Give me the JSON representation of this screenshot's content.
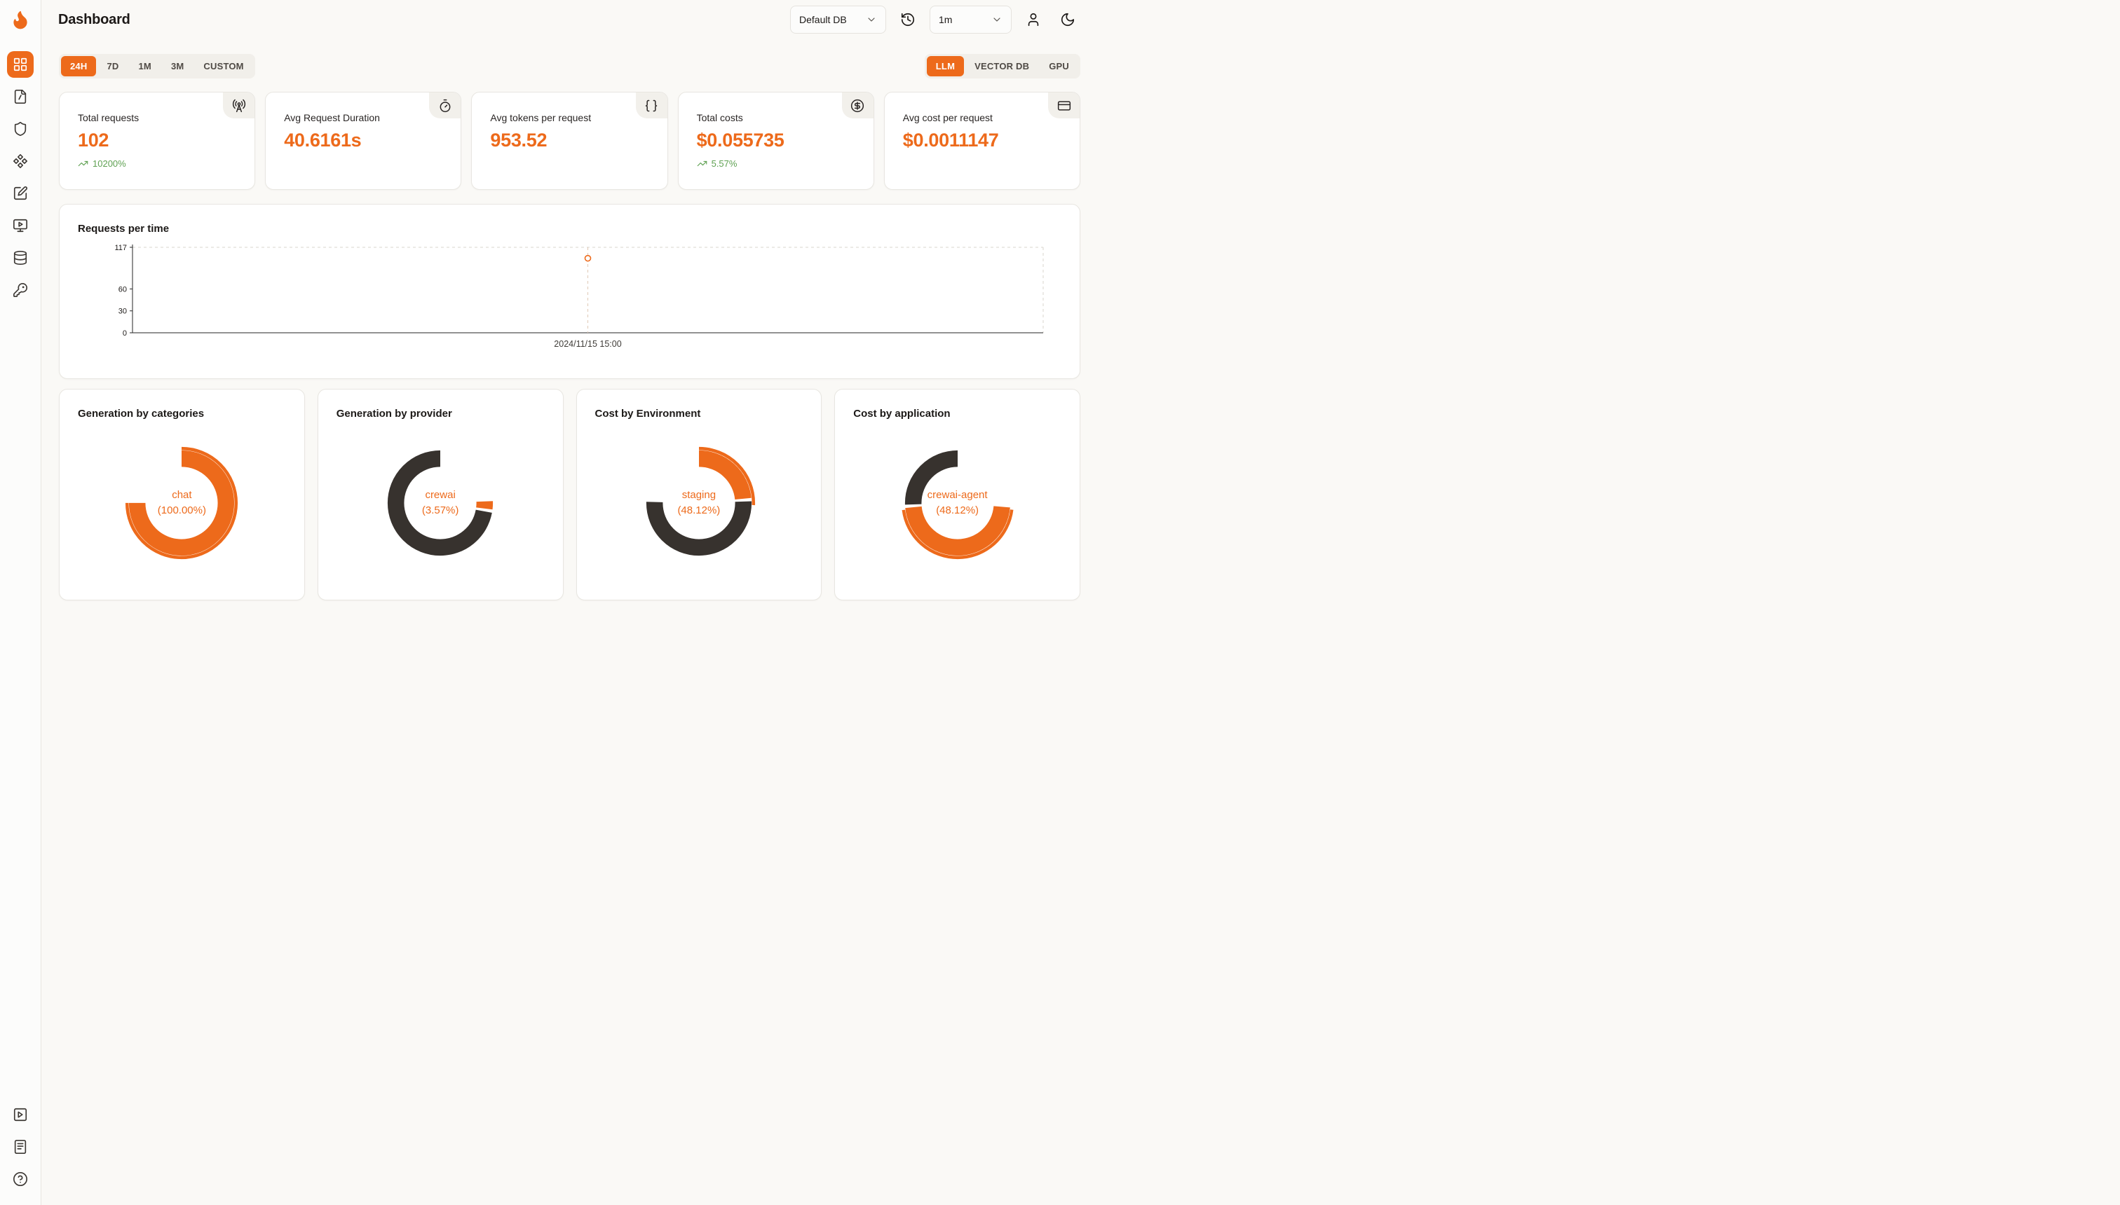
{
  "colors": {
    "accent": "#ED6A1B",
    "dark_slice": "#37322E",
    "positive": "#5FA152"
  },
  "header": {
    "title": "Dashboard",
    "database_select": "Default DB",
    "interval_select": "1m"
  },
  "sidebar": {
    "items": [
      {
        "name": "dashboard",
        "icon": "layout-grid-icon",
        "active": true
      },
      {
        "name": "requests",
        "icon": "file-icon",
        "active": false
      },
      {
        "name": "exceptions",
        "icon": "shield-icon",
        "active": false
      },
      {
        "name": "prompt-hub",
        "icon": "component-icon",
        "active": false
      },
      {
        "name": "evaluations",
        "icon": "square-pen-icon",
        "active": false
      },
      {
        "name": "playground",
        "icon": "monitor-play-icon",
        "active": false
      },
      {
        "name": "databases",
        "icon": "database-icon",
        "active": false
      },
      {
        "name": "api-keys",
        "icon": "key-icon",
        "active": false
      }
    ],
    "bottom_items": [
      {
        "name": "getting-started",
        "icon": "square-play-icon"
      },
      {
        "name": "documentation",
        "icon": "notebook-icon"
      },
      {
        "name": "help",
        "icon": "help-circle-icon"
      }
    ]
  },
  "filters": {
    "time_ranges": [
      "24H",
      "7D",
      "1M",
      "3M",
      "CUSTOM"
    ],
    "active_time_range": "24H",
    "sources": [
      "LLM",
      "VECTOR DB",
      "GPU"
    ],
    "active_source": "LLM"
  },
  "stats": [
    {
      "label": "Total requests",
      "value": "102",
      "delta": "10200%",
      "icon": "radio-tower-icon"
    },
    {
      "label": "Avg Request Duration",
      "value": "40.6161s",
      "icon": "timer-icon"
    },
    {
      "label": "Avg tokens per request",
      "value": "953.52",
      "icon": "braces-icon"
    },
    {
      "label": "Total costs",
      "value": "$0.055735",
      "delta": "5.57%",
      "icon": "circle-dollar-icon"
    },
    {
      "label": "Avg cost per request",
      "value": "$0.0011147",
      "icon": "credit-card-icon"
    }
  ],
  "chart_data": [
    {
      "type": "line",
      "title": "Requests per time",
      "x": [
        "2024/11/15 15:00"
      ],
      "series": [
        {
          "name": "requests",
          "values": [
            102
          ]
        }
      ],
      "ylim": [
        0,
        117
      ],
      "yticks": [
        117,
        60,
        30,
        0
      ],
      "grid": "dashed-border",
      "marker_color": "#ED6A1B"
    },
    {
      "type": "pie",
      "title": "Generation by categories",
      "center_label": "chat",
      "center_value": "(100.00%)",
      "rotation": -90,
      "slices": [
        {
          "label": "chat",
          "value": 100.0,
          "color": "#ED6A1B"
        }
      ],
      "outer_arc": {
        "value": 100,
        "rotation": -90
      }
    },
    {
      "type": "pie",
      "title": "Generation by provider",
      "center_label": "crewai",
      "center_value": "(3.57%)",
      "rotation": 86,
      "slices": [
        {
          "label": "crewai",
          "value": 3.57,
          "color": "#ED6A1B"
        },
        {
          "label": "",
          "value": 96.43,
          "color": "#37322E"
        }
      ]
    },
    {
      "type": "pie",
      "title": "Cost by Environment",
      "center_label": "staging",
      "center_value": "(48.12%)",
      "rotation": -87,
      "slices": [
        {
          "label": "staging",
          "value": 48.12,
          "color": "#ED6A1B"
        },
        {
          "label": "",
          "value": 51.88,
          "color": "#37322E"
        }
      ],
      "outer_arc": {
        "value": 52,
        "rotation": -95
      }
    },
    {
      "type": "pie",
      "title": "Cost by application",
      "center_label": "crewai-agent",
      "center_value": "(48.12%)",
      "rotation": 93,
      "slices": [
        {
          "label": "crewai-agent",
          "value": 48.12,
          "color": "#ED6A1B"
        },
        {
          "label": "",
          "value": 51.88,
          "color": "#37322E"
        }
      ],
      "outer_arc": {
        "value": 46,
        "rotation": 97
      }
    }
  ]
}
